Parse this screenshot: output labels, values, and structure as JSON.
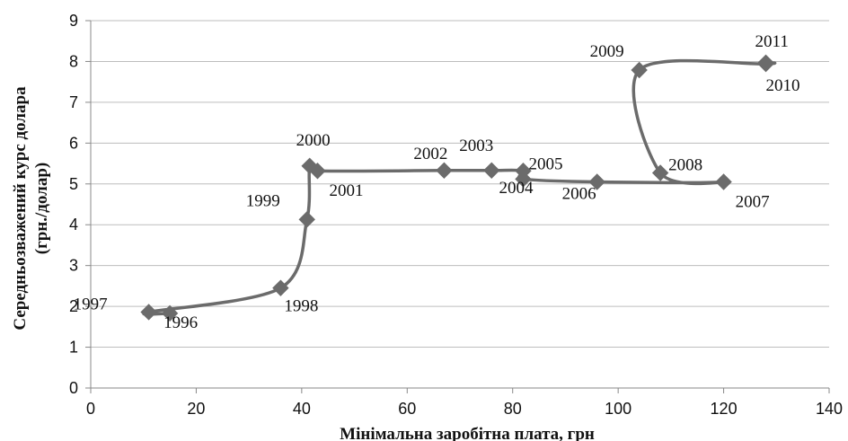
{
  "chart_data": {
    "type": "scatter",
    "title": "",
    "xlabel": "Мінімальна заробітна плата, грн",
    "ylabel_line1": "Середньозважений курс долара",
    "ylabel_line2": "(грн./долар)",
    "xlim": [
      0,
      140
    ],
    "ylim": [
      0,
      9
    ],
    "x_ticks": [
      "0",
      "20",
      "40",
      "60",
      "80",
      "100",
      "120",
      "140"
    ],
    "y_ticks": [
      "0",
      "1",
      "2",
      "3",
      "4",
      "5",
      "6",
      "7",
      "8",
      "9"
    ],
    "grid": "horizontal",
    "line_color": "#6b6b6b",
    "marker": "diamond",
    "points": [
      {
        "label": "1996",
        "x": 15,
        "y": 1.83
      },
      {
        "label": "1997",
        "x": 11,
        "y": 1.86
      },
      {
        "label": "1998",
        "x": 36,
        "y": 2.45
      },
      {
        "label": "1999",
        "x": 41,
        "y": 4.13
      },
      {
        "label": "2000",
        "x": 41.5,
        "y": 5.44
      },
      {
        "label": "2001",
        "x": 43,
        "y": 5.32
      },
      {
        "label": "2002",
        "x": 67,
        "y": 5.33
      },
      {
        "label": "2003",
        "x": 76,
        "y": 5.33
      },
      {
        "label": "2004",
        "x": 82,
        "y": 5.32
      },
      {
        "label": "2005",
        "x": 82,
        "y": 5.12
      },
      {
        "label": "2006",
        "x": 96,
        "y": 5.05
      },
      {
        "label": "2007",
        "x": 120,
        "y": 5.05
      },
      {
        "label": "2008",
        "x": 108,
        "y": 5.27
      },
      {
        "label": "2009",
        "x": 104,
        "y": 7.79
      },
      {
        "label": "2010",
        "x": 128,
        "y": 7.94
      },
      {
        "label": "2011",
        "x": 128,
        "y": 7.97
      }
    ]
  }
}
